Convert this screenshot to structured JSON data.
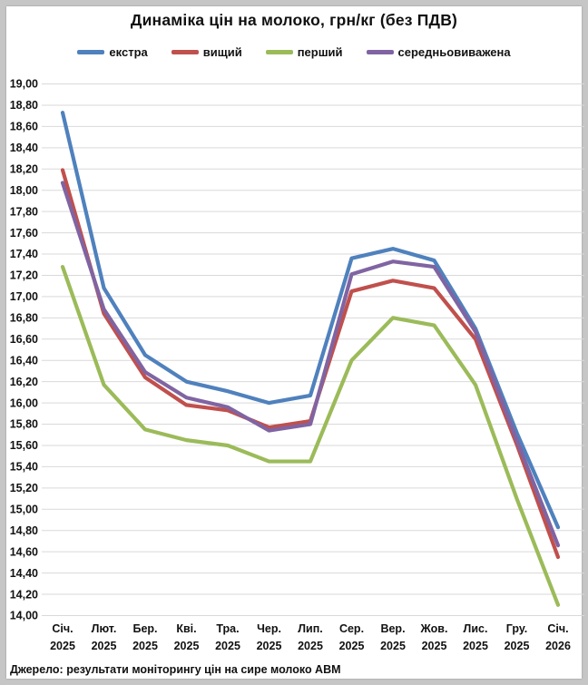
{
  "chart_data": {
    "type": "line",
    "title": "Динаміка цін на молоко, грн/кг (без ПДВ)",
    "source": "Джерело: результати моніторингу цін на сире молоко АВМ",
    "legend_position": "top",
    "grid": true,
    "decimal_separator": ",",
    "ylim": [
      14.0,
      19.0
    ],
    "ytick_step": 0.2,
    "ytick_labels": [
      "19,00",
      "18,80",
      "18,60",
      "18,40",
      "18,20",
      "18,00",
      "17,80",
      "17,60",
      "17,40",
      "17,20",
      "17,00",
      "16,80",
      "16,60",
      "16,40",
      "16,20",
      "16,00",
      "15,80",
      "15,60",
      "15,40",
      "15,20",
      "15,00",
      "14,80",
      "14,60",
      "14,40",
      "14,20",
      "14,00"
    ],
    "categories": [
      {
        "month": "Січ.",
        "year": "2025"
      },
      {
        "month": "Лют.",
        "year": "2025"
      },
      {
        "month": "Бер.",
        "year": "2025"
      },
      {
        "month": "Кві.",
        "year": "2025"
      },
      {
        "month": "Тра.",
        "year": "2025"
      },
      {
        "month": "Чер.",
        "year": "2025"
      },
      {
        "month": "Лип.",
        "year": "2025"
      },
      {
        "month": "Сер.",
        "year": "2025"
      },
      {
        "month": "Вер.",
        "year": "2025"
      },
      {
        "month": "Жов.",
        "year": "2025"
      },
      {
        "month": "Лис.",
        "year": "2025"
      },
      {
        "month": "Гру.",
        "year": "2025"
      },
      {
        "month": "Січ.",
        "year": "2026"
      }
    ],
    "series": [
      {
        "name": "екстра",
        "color": "#4F81BD",
        "values": [
          18.73,
          17.08,
          16.45,
          16.2,
          16.11,
          16.0,
          16.07,
          17.36,
          17.45,
          17.34,
          16.7,
          15.72,
          14.83
        ]
      },
      {
        "name": "вищий",
        "color": "#C0504D",
        "values": [
          18.19,
          16.84,
          16.24,
          15.98,
          15.93,
          15.77,
          15.83,
          17.05,
          17.15,
          17.08,
          16.6,
          15.61,
          14.55
        ]
      },
      {
        "name": "перший",
        "color": "#9BBB59",
        "values": [
          17.28,
          16.17,
          15.75,
          15.65,
          15.6,
          15.45,
          15.45,
          16.4,
          16.8,
          16.73,
          16.17,
          15.1,
          14.1
        ]
      },
      {
        "name": "середньовиважена",
        "color": "#8064A2",
        "values": [
          18.07,
          16.88,
          16.29,
          16.05,
          15.96,
          15.74,
          15.8,
          17.21,
          17.33,
          17.28,
          16.67,
          15.65,
          14.66
        ]
      }
    ]
  },
  "colors": {
    "frame": "#c6c6c6",
    "panel": "#ffffff",
    "gridline": "#d9d9d9",
    "text": "#111111"
  }
}
